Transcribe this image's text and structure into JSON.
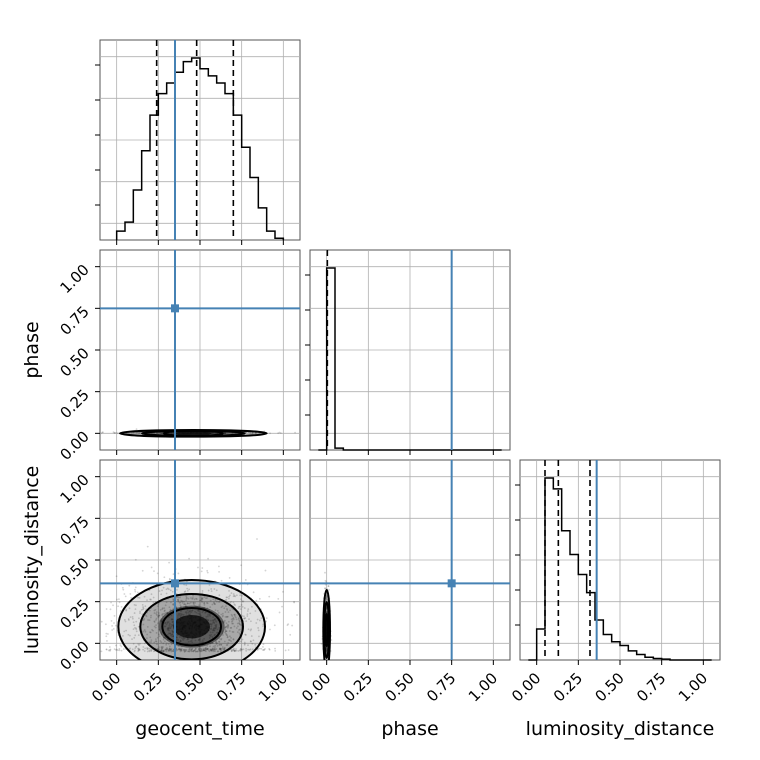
{
  "colors": {
    "truth": "#4682b4",
    "hist": "#000000",
    "grid": "#b0b0b0"
  },
  "labels": {
    "x": [
      "geocent_time",
      "phase",
      "luminosity_distance"
    ],
    "y_row1": "phase",
    "y_row2": "luminosity_distance"
  },
  "tick_labels": [
    "0.00",
    "0.25",
    "0.50",
    "0.75",
    "1.00"
  ],
  "chart_data": {
    "type": "corner",
    "parameters": [
      "geocent_time",
      "phase",
      "luminosity_distance"
    ],
    "axis_range": [
      -0.1,
      1.1
    ],
    "ticks": [
      0,
      0.25,
      0.5,
      0.75,
      1.0
    ],
    "grid": true,
    "truths": {
      "geocent_time": 0.35,
      "phase": 0.75,
      "luminosity_distance": 0.36
    },
    "quantiles": {
      "geocent_time": [
        0.24,
        0.48,
        0.7
      ],
      "phase": [
        0.004
      ],
      "luminosity_distance": [
        0.05,
        0.13,
        0.32
      ]
    },
    "histograms": {
      "geocent_time": {
        "bin_edges": [
          0.0,
          0.05,
          0.1,
          0.15,
          0.2,
          0.25,
          0.3,
          0.35,
          0.4,
          0.45,
          0.5,
          0.55,
          0.6,
          0.65,
          0.7,
          0.75,
          0.8,
          0.85,
          0.9,
          0.95,
          1.0
        ],
        "counts": [
          5,
          10,
          28,
          50,
          70,
          82,
          88,
          94,
          100,
          102,
          96,
          92,
          88,
          82,
          70,
          52,
          35,
          18,
          5,
          1
        ]
      },
      "phase": {
        "bin_edges": [
          -0.05,
          0.0,
          0.05,
          0.1,
          0.15,
          0.2,
          0.25,
          0.3,
          0.35,
          0.4,
          0.45,
          0.5,
          0.55,
          0.6,
          0.65,
          0.7,
          0.75,
          0.8,
          0.85,
          0.9,
          0.95,
          1.0,
          1.05
        ],
        "counts": [
          0,
          100,
          1,
          0,
          0,
          0,
          0,
          0,
          0,
          0,
          0,
          0,
          0,
          0,
          0,
          0,
          0,
          0,
          0,
          0,
          0,
          0
        ]
      },
      "luminosity_distance": {
        "bin_edges": [
          -0.05,
          0.0,
          0.05,
          0.1,
          0.15,
          0.2,
          0.25,
          0.3,
          0.35,
          0.4,
          0.45,
          0.5,
          0.55,
          0.6,
          0.65,
          0.7,
          0.75,
          0.8,
          0.85,
          0.9,
          0.95,
          1.0,
          1.05
        ],
        "counts": [
          0,
          17,
          100,
          94,
          71,
          58,
          47,
          37,
          22,
          14,
          10,
          8,
          5,
          3,
          1.5,
          0.8,
          0.5,
          0,
          0,
          0,
          0,
          0
        ]
      }
    },
    "densities_2d": {
      "phase_vs_geocent_time": {
        "center": [
          0.46,
          0.0
        ],
        "spread": [
          0.22,
          0.01
        ],
        "contour_levels": 3
      },
      "luminosity_distance_vs_geocent_time": {
        "center": [
          0.45,
          0.1
        ],
        "spread": [
          0.22,
          0.14
        ],
        "contour_levels": 3
      },
      "luminosity_distance_vs_phase": {
        "center": [
          0.0,
          0.08
        ],
        "spread": [
          0.01,
          0.12
        ],
        "contour_levels": 3
      }
    }
  }
}
